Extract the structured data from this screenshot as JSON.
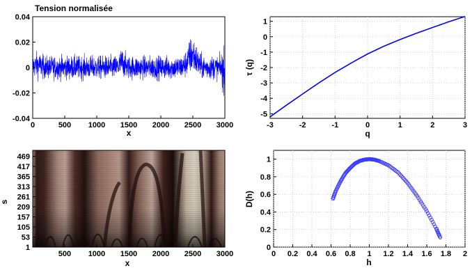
{
  "chart_data": [
    {
      "id": "signal",
      "type": "line",
      "title": "Tension normalisée",
      "xlabel": "x",
      "ylabel": "",
      "xlim": [
        0,
        3000
      ],
      "ylim": [
        -0.04,
        0.04
      ],
      "xticks": [
        0,
        500,
        1000,
        1500,
        2000,
        2500,
        3000
      ],
      "yticks": [
        -0.04,
        -0.02,
        0,
        0.02,
        0.04
      ],
      "grid": false,
      "color": "#0000ff",
      "series_description_values": {
        "n_points": 3000,
        "baseline_amplitude": 0.008,
        "segments": [
          {
            "x": [
              0,
              150
            ],
            "offset": 0.002,
            "amplitude": 0.009
          },
          {
            "x": [
              1350,
              1450
            ],
            "offset": 0.004,
            "amplitude": 0.01
          },
          {
            "x": [
              2400,
              2580
            ],
            "offset": 0.01,
            "amplitude": 0.013
          },
          {
            "x": [
              2950,
              3000
            ],
            "offset": -0.002,
            "amplitude": 0.016
          }
        ],
        "max": 0.027,
        "min": -0.03
      }
    },
    {
      "id": "tau",
      "type": "line",
      "title": "",
      "xlabel": "q",
      "ylabel": "τ (q)",
      "xlim": [
        -3,
        3
      ],
      "ylim": [
        -5.3,
        1.3
      ],
      "xticks": [
        -3,
        -2,
        -1,
        0,
        1,
        2,
        3
      ],
      "yticks": [
        -5,
        -4,
        -3,
        -2,
        -1,
        0,
        1
      ],
      "grid": true,
      "color": "#0000ff",
      "series": [
        {
          "x": [
            -3,
            -2.5,
            -2,
            -1.5,
            -1,
            -0.5,
            0,
            0.5,
            1,
            1.5,
            2,
            2.5,
            3
          ],
          "y": [
            -5.2,
            -4.45,
            -3.72,
            -3.0,
            -2.32,
            -1.7,
            -1.12,
            -0.62,
            -0.18,
            0.22,
            0.6,
            0.97,
            1.32
          ]
        }
      ]
    },
    {
      "id": "wavelet",
      "type": "heatmap",
      "title": "",
      "xlabel": "x",
      "ylabel": "s",
      "xlim": [
        1,
        3000
      ],
      "ylim": [
        1,
        500
      ],
      "xticks": [
        500,
        1000,
        1500,
        2000,
        2500,
        3000
      ],
      "yticks": [
        1,
        53,
        105,
        157,
        209,
        261,
        313,
        365,
        417,
        469
      ],
      "colormap": "pink",
      "bright_columns_x": [
        70,
        600,
        1350,
        1950,
        2500,
        2900
      ],
      "grid": false
    },
    {
      "id": "spectrum",
      "type": "scatter",
      "title": "",
      "xlabel": "h",
      "ylabel": "D(h)",
      "xlim": [
        0,
        2
      ],
      "ylim": [
        0,
        1.1
      ],
      "xticks": [
        0,
        0.2,
        0.4,
        0.6,
        0.8,
        1,
        1.2,
        1.4,
        1.6,
        1.8,
        2
      ],
      "yticks": [
        0,
        0.2,
        0.4,
        0.6,
        0.8,
        1
      ],
      "grid": true,
      "color": "#3a3aff",
      "series": [
        {
          "x": [
            0.62,
            0.65,
            0.7,
            0.75,
            0.8,
            0.85,
            0.9,
            0.95,
            1.0,
            1.05,
            1.1,
            1.2,
            1.3,
            1.4,
            1.5,
            1.6,
            1.7,
            1.74
          ],
          "y": [
            0.55,
            0.64,
            0.75,
            0.84,
            0.9,
            0.95,
            0.98,
            0.995,
            1.0,
            0.995,
            0.98,
            0.93,
            0.85,
            0.73,
            0.58,
            0.41,
            0.21,
            0.11
          ]
        }
      ]
    }
  ]
}
